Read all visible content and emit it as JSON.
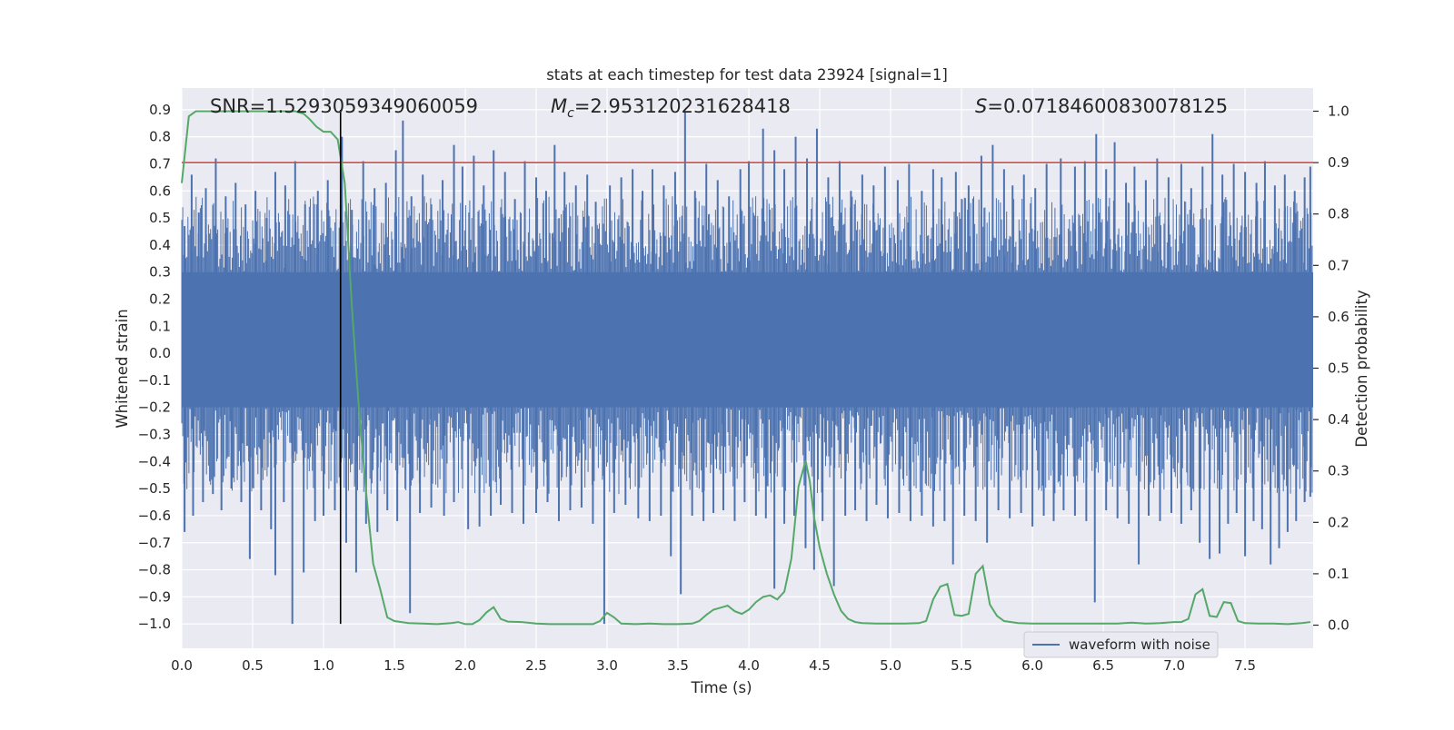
{
  "chart_data": {
    "type": "line",
    "title": "stats at each timestep for test data 23924 [signal=1]",
    "xlabel": "Time (s)",
    "ylabel": "Whitened strain",
    "ylabel_right": "Detection probability",
    "xlim": [
      0.0,
      7.98
    ],
    "ylim": [
      -1.09,
      0.98
    ],
    "ylim_right": [
      -0.045,
      1.045
    ],
    "x_ticks": [
      "0.0",
      "0.5",
      "1.0",
      "1.5",
      "2.0",
      "2.5",
      "3.0",
      "3.5",
      "4.0",
      "4.5",
      "5.0",
      "5.5",
      "6.0",
      "6.5",
      "7.0",
      "7.5"
    ],
    "x_tick_values": [
      0.0,
      0.5,
      1.0,
      1.5,
      2.0,
      2.5,
      3.0,
      3.5,
      4.0,
      4.5,
      5.0,
      5.5,
      6.0,
      6.5,
      7.0,
      7.5
    ],
    "y_ticks": [
      "0.9",
      "0.8",
      "0.7",
      "0.6",
      "0.5",
      "0.4",
      "0.3",
      "0.2",
      "0.1",
      "0.0",
      "−0.1",
      "−0.2",
      "−0.3",
      "−0.4",
      "−0.5",
      "−0.6",
      "−0.7",
      "−0.8",
      "−0.9",
      "−1.0"
    ],
    "y_tick_values": [
      0.9,
      0.8,
      0.7,
      0.6,
      0.5,
      0.4,
      0.3,
      0.2,
      0.1,
      0.0,
      -0.1,
      -0.2,
      -0.3,
      -0.4,
      -0.5,
      -0.6,
      -0.7,
      -0.8,
      -0.9,
      -1.0
    ],
    "y_right_ticks": [
      "1.0",
      "0.9",
      "0.8",
      "0.7",
      "0.6",
      "0.5",
      "0.4",
      "0.3",
      "0.2",
      "0.1",
      "0.0"
    ],
    "y_right_tick_values": [
      1.0,
      0.9,
      0.8,
      0.7,
      0.6,
      0.5,
      0.4,
      0.3,
      0.2,
      0.1,
      0.0
    ],
    "grid": true,
    "legend": {
      "placement": "lower-right",
      "entries": [
        "waveform with noise"
      ]
    },
    "annotations": {
      "snr": "SNR=1.5293059349060059",
      "mc_symbol": "M",
      "mc_sub": "c",
      "mc_value": "=2.953120231628418",
      "s_symbol": "S",
      "s_value": "=0.07184600830078125"
    },
    "threshold": {
      "value": 0.9,
      "axis": "right"
    },
    "marker_time": 1.12,
    "waveform": {
      "name": "waveform with noise",
      "color": "#4c72b0",
      "dense_band": [
        -0.2,
        0.3
      ],
      "spikes": [
        {
          "x": 0.02,
          "y": 0.47
        },
        {
          "x": 0.07,
          "y": 0.66
        },
        {
          "x": 0.12,
          "y": 0.52
        },
        {
          "x": 0.17,
          "y": 0.61
        },
        {
          "x": 0.24,
          "y": 0.72
        },
        {
          "x": 0.31,
          "y": 0.58
        },
        {
          "x": 0.38,
          "y": 0.63
        },
        {
          "x": 0.45,
          "y": 0.55
        },
        {
          "x": 0.52,
          "y": 0.6
        },
        {
          "x": 0.6,
          "y": 0.5
        },
        {
          "x": 0.66,
          "y": 0.67
        },
        {
          "x": 0.73,
          "y": 0.62
        },
        {
          "x": 0.8,
          "y": 0.71
        },
        {
          "x": 0.87,
          "y": 0.55
        },
        {
          "x": 0.96,
          "y": 0.6
        },
        {
          "x": 1.03,
          "y": 0.64
        },
        {
          "x": 1.13,
          "y": 0.8
        },
        {
          "x": 1.2,
          "y": 0.53
        },
        {
          "x": 1.28,
          "y": 0.71
        },
        {
          "x": 1.36,
          "y": 0.61
        },
        {
          "x": 1.44,
          "y": 0.63
        },
        {
          "x": 1.51,
          "y": 0.75
        },
        {
          "x": 1.56,
          "y": 0.86
        },
        {
          "x": 1.62,
          "y": 0.58
        },
        {
          "x": 1.7,
          "y": 0.66
        },
        {
          "x": 1.76,
          "y": 0.55
        },
        {
          "x": 1.84,
          "y": 0.64
        },
        {
          "x": 1.92,
          "y": 0.77
        },
        {
          "x": 1.98,
          "y": 0.69
        },
        {
          "x": 2.06,
          "y": 0.73
        },
        {
          "x": 2.13,
          "y": 0.62
        },
        {
          "x": 2.2,
          "y": 0.75
        },
        {
          "x": 2.28,
          "y": 0.67
        },
        {
          "x": 2.35,
          "y": 0.57
        },
        {
          "x": 2.42,
          "y": 0.71
        },
        {
          "x": 2.5,
          "y": 0.65
        },
        {
          "x": 2.57,
          "y": 0.6
        },
        {
          "x": 2.63,
          "y": 0.77
        },
        {
          "x": 2.7,
          "y": 0.67
        },
        {
          "x": 2.78,
          "y": 0.62
        },
        {
          "x": 2.86,
          "y": 0.66
        },
        {
          "x": 2.92,
          "y": 0.56
        },
        {
          "x": 3.02,
          "y": 0.62
        },
        {
          "x": 3.1,
          "y": 0.65
        },
        {
          "x": 3.18,
          "y": 0.68
        },
        {
          "x": 3.25,
          "y": 0.6
        },
        {
          "x": 3.32,
          "y": 0.68
        },
        {
          "x": 3.4,
          "y": 0.62
        },
        {
          "x": 3.48,
          "y": 0.67
        },
        {
          "x": 3.55,
          "y": 0.89
        },
        {
          "x": 3.62,
          "y": 0.6
        },
        {
          "x": 3.7,
          "y": 0.7
        },
        {
          "x": 3.78,
          "y": 0.64
        },
        {
          "x": 3.86,
          "y": 0.58
        },
        {
          "x": 3.94,
          "y": 0.68
        },
        {
          "x": 4.0,
          "y": 0.71
        },
        {
          "x": 4.1,
          "y": 0.83
        },
        {
          "x": 4.18,
          "y": 0.75
        },
        {
          "x": 4.25,
          "y": 0.68
        },
        {
          "x": 4.33,
          "y": 0.8
        },
        {
          "x": 4.41,
          "y": 0.72
        },
        {
          "x": 4.48,
          "y": 0.83
        },
        {
          "x": 4.56,
          "y": 0.65
        },
        {
          "x": 4.64,
          "y": 0.71
        },
        {
          "x": 4.72,
          "y": 0.6
        },
        {
          "x": 4.8,
          "y": 0.66
        },
        {
          "x": 4.88,
          "y": 0.62
        },
        {
          "x": 4.96,
          "y": 0.69
        },
        {
          "x": 5.05,
          "y": 0.64
        },
        {
          "x": 5.13,
          "y": 0.7
        },
        {
          "x": 5.22,
          "y": 0.6
        },
        {
          "x": 5.3,
          "y": 0.68
        },
        {
          "x": 5.36,
          "y": 0.65
        },
        {
          "x": 5.46,
          "y": 0.67
        },
        {
          "x": 5.55,
          "y": 0.62
        },
        {
          "x": 5.64,
          "y": 0.73
        },
        {
          "x": 5.72,
          "y": 0.77
        },
        {
          "x": 5.8,
          "y": 0.68
        },
        {
          "x": 5.86,
          "y": 0.62
        },
        {
          "x": 5.94,
          "y": 0.66
        },
        {
          "x": 6.02,
          "y": 0.61
        },
        {
          "x": 6.1,
          "y": 0.7
        },
        {
          "x": 6.2,
          "y": 0.72
        },
        {
          "x": 6.3,
          "y": 0.69
        },
        {
          "x": 6.37,
          "y": 0.71
        },
        {
          "x": 6.45,
          "y": 0.81
        },
        {
          "x": 6.52,
          "y": 0.68
        },
        {
          "x": 6.58,
          "y": 0.78
        },
        {
          "x": 6.66,
          "y": 0.63
        },
        {
          "x": 6.72,
          "y": 0.69
        },
        {
          "x": 6.8,
          "y": 0.64
        },
        {
          "x": 6.88,
          "y": 0.72
        },
        {
          "x": 6.96,
          "y": 0.65
        },
        {
          "x": 7.05,
          "y": 0.7
        },
        {
          "x": 7.12,
          "y": 0.61
        },
        {
          "x": 7.2,
          "y": 0.69
        },
        {
          "x": 7.27,
          "y": 0.81
        },
        {
          "x": 7.34,
          "y": 0.66
        },
        {
          "x": 7.42,
          "y": 0.7
        },
        {
          "x": 7.5,
          "y": 0.67
        },
        {
          "x": 7.58,
          "y": 0.63
        },
        {
          "x": 7.64,
          "y": 0.71
        },
        {
          "x": 7.71,
          "y": 0.62
        },
        {
          "x": 7.78,
          "y": 0.66
        },
        {
          "x": 7.85,
          "y": 0.6
        },
        {
          "x": 7.92,
          "y": 0.65
        },
        {
          "x": 7.96,
          "y": 0.69
        },
        {
          "x": 0.02,
          "y": -0.66
        },
        {
          "x": 0.08,
          "y": -0.6
        },
        {
          "x": 0.15,
          "y": -0.55
        },
        {
          "x": 0.22,
          "y": -0.52
        },
        {
          "x": 0.28,
          "y": -0.58
        },
        {
          "x": 0.35,
          "y": -0.5
        },
        {
          "x": 0.42,
          "y": -0.55
        },
        {
          "x": 0.48,
          "y": -0.76
        },
        {
          "x": 0.56,
          "y": -0.58
        },
        {
          "x": 0.63,
          "y": -0.65
        },
        {
          "x": 0.66,
          "y": -0.82
        },
        {
          "x": 0.72,
          "y": -0.55
        },
        {
          "x": 0.78,
          "y": -1.0
        },
        {
          "x": 0.86,
          "y": -0.81
        },
        {
          "x": 0.94,
          "y": -0.62
        },
        {
          "x": 1.0,
          "y": -0.6
        },
        {
          "x": 1.08,
          "y": -0.58
        },
        {
          "x": 1.16,
          "y": -0.7
        },
        {
          "x": 1.23,
          "y": -0.81
        },
        {
          "x": 1.3,
          "y": -0.63
        },
        {
          "x": 1.38,
          "y": -0.66
        },
        {
          "x": 1.45,
          "y": -0.58
        },
        {
          "x": 1.52,
          "y": -0.62
        },
        {
          "x": 1.61,
          "y": -0.96
        },
        {
          "x": 1.68,
          "y": -0.59
        },
        {
          "x": 1.76,
          "y": -0.57
        },
        {
          "x": 1.85,
          "y": -0.6
        },
        {
          "x": 1.92,
          "y": -0.55
        },
        {
          "x": 2.02,
          "y": -0.65
        },
        {
          "x": 2.1,
          "y": -0.64
        },
        {
          "x": 2.18,
          "y": -0.6
        },
        {
          "x": 2.25,
          "y": -0.56
        },
        {
          "x": 2.33,
          "y": -0.59
        },
        {
          "x": 2.41,
          "y": -0.63
        },
        {
          "x": 2.5,
          "y": -0.59
        },
        {
          "x": 2.58,
          "y": -0.55
        },
        {
          "x": 2.66,
          "y": -0.62
        },
        {
          "x": 2.74,
          "y": -0.58
        },
        {
          "x": 2.82,
          "y": -0.57
        },
        {
          "x": 2.9,
          "y": -0.63
        },
        {
          "x": 2.98,
          "y": -1.0
        },
        {
          "x": 3.05,
          "y": -0.59
        },
        {
          "x": 3.13,
          "y": -0.56
        },
        {
          "x": 3.22,
          "y": -0.61
        },
        {
          "x": 3.3,
          "y": -0.62
        },
        {
          "x": 3.38,
          "y": -0.6
        },
        {
          "x": 3.45,
          "y": -0.75
        },
        {
          "x": 3.52,
          "y": -0.89
        },
        {
          "x": 3.6,
          "y": -0.6
        },
        {
          "x": 3.68,
          "y": -0.62
        },
        {
          "x": 3.75,
          "y": -0.59
        },
        {
          "x": 3.82,
          "y": -0.58
        },
        {
          "x": 3.9,
          "y": -0.62
        },
        {
          "x": 3.97,
          "y": -0.55
        },
        {
          "x": 4.05,
          "y": -0.6
        },
        {
          "x": 4.12,
          "y": -0.61
        },
        {
          "x": 4.18,
          "y": -0.87
        },
        {
          "x": 4.25,
          "y": -0.63
        },
        {
          "x": 4.32,
          "y": -0.6
        },
        {
          "x": 4.4,
          "y": -0.72
        },
        {
          "x": 4.46,
          "y": -0.8
        },
        {
          "x": 4.52,
          "y": -0.62
        },
        {
          "x": 4.6,
          "y": -0.86
        },
        {
          "x": 4.68,
          "y": -0.6
        },
        {
          "x": 4.75,
          "y": -0.58
        },
        {
          "x": 4.83,
          "y": -0.62
        },
        {
          "x": 4.9,
          "y": -0.56
        },
        {
          "x": 4.98,
          "y": -0.61
        },
        {
          "x": 5.06,
          "y": -0.59
        },
        {
          "x": 5.14,
          "y": -0.62
        },
        {
          "x": 5.22,
          "y": -0.6
        },
        {
          "x": 5.3,
          "y": -0.64
        },
        {
          "x": 5.38,
          "y": -0.62
        },
        {
          "x": 5.44,
          "y": -0.78
        },
        {
          "x": 5.52,
          "y": -0.6
        },
        {
          "x": 5.6,
          "y": -0.62
        },
        {
          "x": 5.68,
          "y": -0.7
        },
        {
          "x": 5.76,
          "y": -0.58
        },
        {
          "x": 5.84,
          "y": -0.61
        },
        {
          "x": 5.92,
          "y": -0.59
        },
        {
          "x": 6.0,
          "y": -0.64
        },
        {
          "x": 6.08,
          "y": -0.6
        },
        {
          "x": 6.15,
          "y": -0.62
        },
        {
          "x": 6.22,
          "y": -0.58
        },
        {
          "x": 6.3,
          "y": -0.6
        },
        {
          "x": 6.38,
          "y": -0.62
        },
        {
          "x": 6.44,
          "y": -0.92
        },
        {
          "x": 6.52,
          "y": -0.58
        },
        {
          "x": 6.6,
          "y": -0.61
        },
        {
          "x": 6.68,
          "y": -0.63
        },
        {
          "x": 6.75,
          "y": -0.78
        },
        {
          "x": 6.82,
          "y": -0.6
        },
        {
          "x": 6.9,
          "y": -0.62
        },
        {
          "x": 6.98,
          "y": -0.59
        },
        {
          "x": 7.05,
          "y": -0.63
        },
        {
          "x": 7.12,
          "y": -0.58
        },
        {
          "x": 7.18,
          "y": -0.7
        },
        {
          "x": 7.25,
          "y": -0.76
        },
        {
          "x": 7.32,
          "y": -0.74
        },
        {
          "x": 7.38,
          "y": -0.63
        },
        {
          "x": 7.44,
          "y": -0.59
        },
        {
          "x": 7.5,
          "y": -0.75
        },
        {
          "x": 7.56,
          "y": -0.62
        },
        {
          "x": 7.62,
          "y": -0.65
        },
        {
          "x": 7.68,
          "y": -0.78
        },
        {
          "x": 7.74,
          "y": -0.72
        },
        {
          "x": 7.8,
          "y": -0.66
        },
        {
          "x": 7.86,
          "y": -0.62
        },
        {
          "x": 7.92,
          "y": -0.55
        },
        {
          "x": 7.96,
          "y": -0.53
        }
      ]
    },
    "probability": {
      "color": "#55a868",
      "x": [
        0.0,
        0.05,
        0.1,
        0.2,
        0.3,
        0.4,
        0.5,
        0.6,
        0.7,
        0.8,
        0.86,
        0.9,
        0.95,
        1.0,
        1.05,
        1.1,
        1.15,
        1.2,
        1.25,
        1.3,
        1.35,
        1.4,
        1.45,
        1.5,
        1.6,
        1.7,
        1.8,
        1.9,
        1.95,
        2.0,
        2.05,
        2.1,
        2.15,
        2.2,
        2.25,
        2.3,
        2.4,
        2.5,
        2.6,
        2.7,
        2.8,
        2.9,
        2.95,
        3.0,
        3.05,
        3.1,
        3.2,
        3.3,
        3.4,
        3.5,
        3.6,
        3.65,
        3.7,
        3.75,
        3.8,
        3.85,
        3.9,
        3.95,
        4.0,
        4.05,
        4.1,
        4.15,
        4.2,
        4.25,
        4.3,
        4.35,
        4.4,
        4.43,
        4.46,
        4.5,
        4.55,
        4.6,
        4.65,
        4.7,
        4.75,
        4.8,
        4.9,
        5.0,
        5.1,
        5.2,
        5.25,
        5.3,
        5.35,
        5.4,
        5.45,
        5.5,
        5.55,
        5.6,
        5.65,
        5.7,
        5.75,
        5.8,
        5.9,
        6.0,
        6.2,
        6.4,
        6.6,
        6.7,
        6.8,
        6.9,
        7.0,
        7.05,
        7.1,
        7.15,
        7.2,
        7.25,
        7.3,
        7.35,
        7.4,
        7.45,
        7.5,
        7.6,
        7.7,
        7.8,
        7.9,
        7.96
      ],
      "y": [
        0.86,
        0.99,
        1.0,
        1.0,
        1.0,
        1.0,
        1.0,
        1.0,
        1.0,
        1.0,
        0.995,
        0.985,
        0.97,
        0.96,
        0.96,
        0.945,
        0.86,
        0.62,
        0.42,
        0.26,
        0.12,
        0.07,
        0.015,
        0.008,
        0.004,
        0.003,
        0.002,
        0.004,
        0.006,
        0.002,
        0.002,
        0.01,
        0.025,
        0.035,
        0.012,
        0.007,
        0.006,
        0.003,
        0.002,
        0.002,
        0.002,
        0.002,
        0.008,
        0.024,
        0.015,
        0.003,
        0.002,
        0.003,
        0.002,
        0.002,
        0.003,
        0.008,
        0.02,
        0.03,
        0.034,
        0.038,
        0.027,
        0.022,
        0.03,
        0.045,
        0.055,
        0.058,
        0.05,
        0.065,
        0.13,
        0.27,
        0.32,
        0.28,
        0.21,
        0.15,
        0.1,
        0.06,
        0.028,
        0.012,
        0.006,
        0.004,
        0.003,
        0.003,
        0.003,
        0.004,
        0.008,
        0.05,
        0.075,
        0.08,
        0.02,
        0.018,
        0.022,
        0.1,
        0.115,
        0.04,
        0.018,
        0.008,
        0.004,
        0.003,
        0.003,
        0.003,
        0.003,
        0.005,
        0.003,
        0.004,
        0.006,
        0.006,
        0.012,
        0.06,
        0.07,
        0.018,
        0.016,
        0.045,
        0.043,
        0.008,
        0.004,
        0.003,
        0.003,
        0.002,
        0.004,
        0.006
      ]
    }
  }
}
